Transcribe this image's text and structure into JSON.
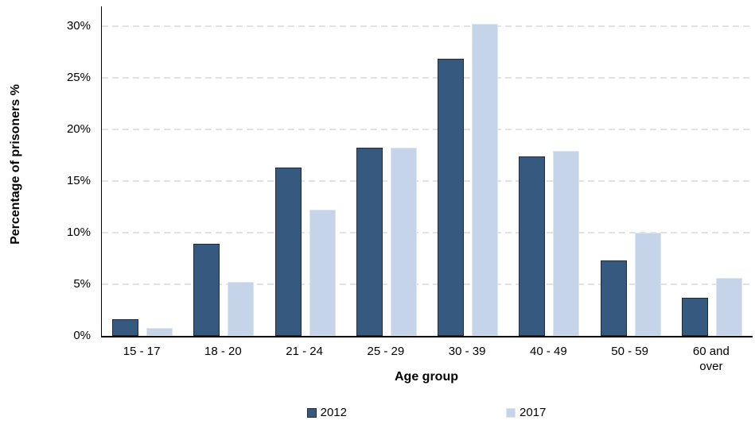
{
  "chart_data": {
    "type": "bar",
    "title": "",
    "categories": [
      "15 - 17",
      "18 - 20",
      "21 - 24",
      "25 - 29",
      "30 - 39",
      "40 - 49",
      "50 - 59",
      "60 and over"
    ],
    "series": [
      {
        "name": "2012",
        "color": "#35597F",
        "border_color": "#1E2B3C",
        "values": [
          1.6,
          8.9,
          16.3,
          18.2,
          26.8,
          17.4,
          7.3,
          3.7
        ]
      },
      {
        "name": "2017",
        "color": "#C5D4E8",
        "border_color": "#DEE6F2",
        "values": [
          0.8,
          5.2,
          12.2,
          18.2,
          30.2,
          17.9,
          10.0,
          5.6
        ]
      }
    ],
    "xlabel": "Age group",
    "ylabel": "Percentage of prisoners %",
    "ylim": [
      0,
      31.9
    ],
    "ytick_step": 5,
    "yticks": [
      {
        "value": 0,
        "label": "0%"
      },
      {
        "value": 5,
        "label": "5%"
      },
      {
        "value": 10,
        "label": "10%"
      },
      {
        "value": 15,
        "label": "15%"
      },
      {
        "value": 20,
        "label": "20%"
      },
      {
        "value": 25,
        "label": "25%"
      },
      {
        "value": 30,
        "label": "30%"
      }
    ],
    "grid": "horizontal-dashed",
    "grid_color": "#E2E2E2",
    "legend_position": "bottom",
    "background": "#FFFFFF"
  }
}
